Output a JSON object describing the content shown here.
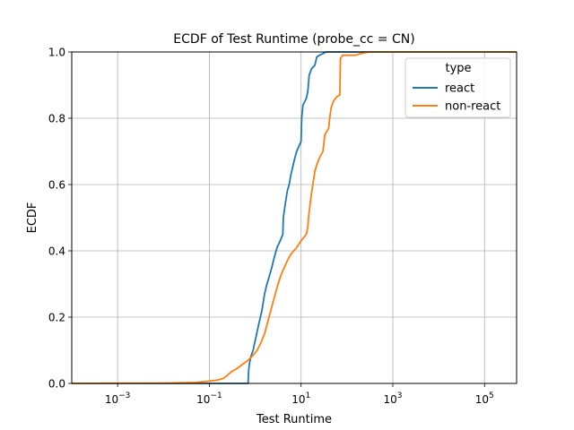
{
  "chart_data": {
    "type": "line",
    "title": "ECDF of Test Runtime (probe_cc = CN)",
    "xlabel": "Test Runtime",
    "ylabel": "ECDF",
    "xscale": "log",
    "xlim": [
      0.0001,
      500000
    ],
    "ylim": [
      0,
      1
    ],
    "grid": true,
    "x_ticks": [
      {
        "value": 0.001,
        "base": "10",
        "exp": "−3"
      },
      {
        "value": 0.1,
        "base": "10",
        "exp": "−1"
      },
      {
        "value": 10,
        "base": "10",
        "exp": "1"
      },
      {
        "value": 1000,
        "base": "10",
        "exp": "3"
      },
      {
        "value": 100000,
        "base": "10",
        "exp": "5"
      }
    ],
    "y_ticks": [
      "0.0",
      "0.2",
      "0.4",
      "0.6",
      "0.8",
      "1.0"
    ],
    "legend": {
      "title": "type",
      "placement": "top-right"
    },
    "series": [
      {
        "name": "react",
        "color": "#1f77b4",
        "points": [
          [
            0.0001,
            0
          ],
          [
            0.7,
            0
          ],
          [
            0.72,
            0.04
          ],
          [
            0.75,
            0.06
          ],
          [
            0.8,
            0.08
          ],
          [
            0.9,
            0.1
          ],
          [
            1.0,
            0.13
          ],
          [
            1.2,
            0.18
          ],
          [
            1.4,
            0.22
          ],
          [
            1.6,
            0.27
          ],
          [
            1.8,
            0.3
          ],
          [
            2.0,
            0.32
          ],
          [
            2.3,
            0.35
          ],
          [
            2.6,
            0.38
          ],
          [
            3.0,
            0.41
          ],
          [
            3.5,
            0.43
          ],
          [
            4.0,
            0.45
          ],
          [
            4.1,
            0.5
          ],
          [
            4.5,
            0.54
          ],
          [
            5.0,
            0.58
          ],
          [
            5.5,
            0.6
          ],
          [
            6.0,
            0.63
          ],
          [
            6.5,
            0.65
          ],
          [
            7.0,
            0.67
          ],
          [
            8.0,
            0.7
          ],
          [
            10.0,
            0.73
          ],
          [
            10.3,
            0.8
          ],
          [
            11.0,
            0.84
          ],
          [
            12.0,
            0.85
          ],
          [
            13.0,
            0.86
          ],
          [
            14.0,
            0.88
          ],
          [
            15.0,
            0.93
          ],
          [
            17.0,
            0.95
          ],
          [
            20.0,
            0.96
          ],
          [
            22.0,
            0.985
          ],
          [
            25.0,
            0.99
          ],
          [
            30.0,
            0.995
          ],
          [
            35.0,
            1.0
          ],
          [
            500000,
            1.0
          ]
        ]
      },
      {
        "name": "non-react",
        "color": "#ff7f0e",
        "points": [
          [
            0.0001,
            0
          ],
          [
            0.01,
            0.001
          ],
          [
            0.05,
            0.003
          ],
          [
            0.1,
            0.007
          ],
          [
            0.15,
            0.01
          ],
          [
            0.2,
            0.015
          ],
          [
            0.25,
            0.025
          ],
          [
            0.3,
            0.035
          ],
          [
            0.4,
            0.045
          ],
          [
            0.5,
            0.055
          ],
          [
            0.7,
            0.07
          ],
          [
            0.9,
            0.085
          ],
          [
            1.1,
            0.1
          ],
          [
            1.3,
            0.12
          ],
          [
            1.6,
            0.15
          ],
          [
            2.0,
            0.2
          ],
          [
            2.5,
            0.25
          ],
          [
            3.0,
            0.29
          ],
          [
            3.5,
            0.32
          ],
          [
            4.0,
            0.34
          ],
          [
            5.0,
            0.37
          ],
          [
            6.0,
            0.39
          ],
          [
            8.0,
            0.41
          ],
          [
            10.0,
            0.43
          ],
          [
            13.0,
            0.45
          ],
          [
            14.0,
            0.47
          ],
          [
            14.5,
            0.5
          ],
          [
            16.0,
            0.55
          ],
          [
            18.0,
            0.6
          ],
          [
            20.0,
            0.64
          ],
          [
            22.0,
            0.66
          ],
          [
            25.0,
            0.68
          ],
          [
            30.0,
            0.7
          ],
          [
            33.0,
            0.75
          ],
          [
            40.0,
            0.77
          ],
          [
            42.0,
            0.8
          ],
          [
            45.0,
            0.83
          ],
          [
            50.0,
            0.85
          ],
          [
            60.0,
            0.865
          ],
          [
            70.0,
            0.87
          ],
          [
            72.0,
            0.98
          ],
          [
            80.0,
            0.99
          ],
          [
            150.0,
            0.99
          ],
          [
            200.0,
            0.995
          ],
          [
            300.0,
            1.0
          ],
          [
            500000,
            1.0
          ]
        ]
      }
    ]
  }
}
